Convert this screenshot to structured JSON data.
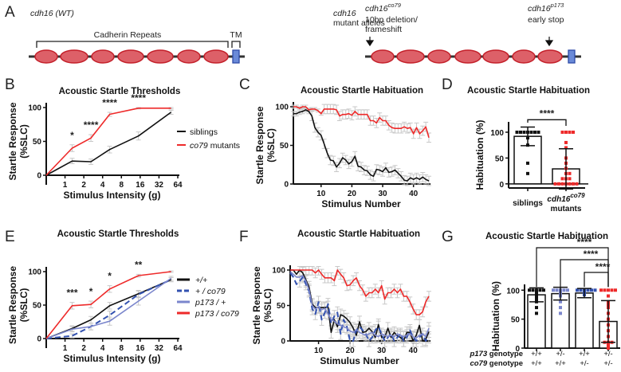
{
  "colors": {
    "black": "#111111",
    "red": "#ee2a2a",
    "blue_dark": "#3352b0",
    "blue_light": "#7b86cc",
    "errbar": "#c8c8c8",
    "domain_fill": "#dd6068",
    "domain_stroke": "#c4202a",
    "tm_fill": "#6a8ad8",
    "tm_stroke": "#2c4aa8"
  },
  "panelA": {
    "label": "A",
    "wt_title": "cdh16 (WT)",
    "repeats_label": "Cadherin Repeats",
    "tm_label": "TM",
    "mutant_title_line1": "cdh16",
    "mutant_title_line2": "mutant alleles",
    "allele1_name": "cdh16",
    "allele1_sup": "co79",
    "allele1_desc1": "10bp deletion/",
    "allele1_desc2": "frameshift",
    "allele2_name": "cdh16",
    "allele2_sup": "p173",
    "allele2_desc": "early stop",
    "num_repeats": 7
  },
  "chart_data": [
    {
      "panel": "B",
      "type": "line",
      "title": "Acoustic Startle Thresholds",
      "xlabel": "Stimulus Intensity (g)",
      "ylabel": "Startle Response (%SLC)",
      "xticks": [
        "1",
        "2",
        "4",
        "8",
        "16",
        "32",
        "64"
      ],
      "yticks": [
        "0",
        "50",
        "100"
      ],
      "ylim": [
        0,
        100
      ],
      "x": [
        0,
        1.3,
        2.6,
        5.2,
        15,
        50
      ],
      "series": [
        {
          "name": "siblings",
          "color": "#111111",
          "values": [
            0,
            21,
            20,
            38,
            58,
            93
          ],
          "err": [
            0,
            4,
            4,
            5,
            6,
            3
          ]
        },
        {
          "name": "co79 mutants",
          "color": "#ee2a2a",
          "values": [
            0,
            40,
            55,
            90,
            99,
            99
          ],
          "err": [
            0,
            5,
            5,
            3,
            1,
            1
          ]
        }
      ],
      "significance": [
        {
          "x": 1.3,
          "label": "*"
        },
        {
          "x": 2.6,
          "label": "****"
        },
        {
          "x": 5.2,
          "label": "****"
        },
        {
          "x": 15,
          "label": "****"
        }
      ],
      "legend": [
        {
          "label": "siblings",
          "italic_part": ""
        },
        {
          "label": " mutants",
          "italic_part": "co79"
        }
      ]
    },
    {
      "panel": "C",
      "type": "line",
      "title": "Acoustic Startle Habituation",
      "xlabel": "Stimulus Number",
      "ylabel": "Startle Response (%SLC)",
      "xticks": [
        "10",
        "20",
        "30",
        "40"
      ],
      "yticks": [
        "0",
        "50",
        "100"
      ],
      "ylim": [
        0,
        100
      ],
      "xlim": [
        1,
        45
      ],
      "series": [
        {
          "name": "siblings",
          "color": "#111111",
          "values": [
            91,
            91,
            93,
            94,
            96,
            94,
            88,
            73,
            67,
            63,
            52,
            40,
            31,
            30,
            22,
            27,
            34,
            31,
            26,
            29,
            36,
            23,
            22,
            18,
            17,
            12,
            10,
            19,
            18,
            16,
            21,
            15,
            16,
            18,
            14,
            10,
            5,
            4,
            8,
            6,
            8,
            6,
            9,
            6,
            4
          ]
        },
        {
          "name": "co79 mutants",
          "color": "#ee2a2a",
          "values": [
            100,
            100,
            98,
            100,
            100,
            96,
            97,
            97,
            95,
            91,
            97,
            97,
            97,
            97,
            96,
            88,
            90,
            90,
            91,
            89,
            94,
            90,
            90,
            90,
            90,
            82,
            82,
            79,
            86,
            82,
            82,
            76,
            73,
            72,
            72,
            72,
            74,
            72,
            73,
            65,
            73,
            65,
            69,
            74,
            60
          ]
        }
      ]
    },
    {
      "panel": "D",
      "type": "bar",
      "title": "Acoustic Startle Habituation",
      "ylabel": "Habituation (%)",
      "yticks": [
        "0",
        "50",
        "100"
      ],
      "ylim": [
        -8,
        120
      ],
      "categories": [
        "siblings",
        "cdh16 co79 mutants"
      ],
      "category_labels": [
        {
          "line1": "siblings",
          "line2": "",
          "sup": ""
        },
        {
          "line1": "cdh16",
          "line2": "mutants",
          "sup": "co79"
        }
      ],
      "values": [
        92,
        29
      ],
      "err": [
        18,
        39
      ],
      "colors": [
        "#111111",
        "#ee2a2a"
      ],
      "points": [
        [
          100,
          100,
          100,
          100,
          100,
          100,
          100,
          90,
          89,
          75,
          40,
          20
        ],
        [
          100,
          100,
          100,
          100,
          80,
          70,
          50,
          40,
          30,
          20,
          20,
          10,
          10,
          10,
          0,
          0,
          0,
          0,
          0,
          0,
          0
        ]
      ],
      "significance": [
        {
          "from": 0,
          "to": 1,
          "label": "****"
        }
      ]
    },
    {
      "panel": "E",
      "type": "line",
      "title": "Acoustic Startle Thresholds",
      "xlabel": "Stimulus Intensity (g)",
      "ylabel": "Startle Response (%SLC)",
      "xticks": [
        "1",
        "2",
        "4",
        "8",
        "16",
        "32",
        "64"
      ],
      "yticks": [
        "0",
        "50",
        "100"
      ],
      "ylim": [
        0,
        100
      ],
      "x": [
        0,
        1.3,
        2.6,
        5.2,
        15,
        50
      ],
      "series": [
        {
          "name": "+/+",
          "color": "#111111",
          "dash": false,
          "values": [
            0,
            15,
            28,
            49,
            67,
            88
          ],
          "err": [
            0,
            4,
            5,
            5,
            5,
            3
          ]
        },
        {
          "name": "+ / co79",
          "color": "#3352b0",
          "dash": true,
          "values": [
            0,
            4,
            18,
            35,
            66,
            88
          ],
          "err": [
            0,
            3,
            5,
            6,
            5,
            3
          ]
        },
        {
          "name": "p173 / +",
          "color": "#7b86cc",
          "dash": false,
          "values": [
            0,
            14,
            18,
            26,
            56,
            90
          ],
          "err": [
            0,
            4,
            5,
            6,
            6,
            3
          ]
        },
        {
          "name": "p173 / co79",
          "color": "#ee2a2a",
          "dash": false,
          "values": [
            0,
            49,
            51,
            74,
            94,
            100
          ],
          "err": [
            0,
            5,
            5,
            5,
            2,
            1
          ]
        }
      ],
      "significance": [
        {
          "x": 1.3,
          "label": "***"
        },
        {
          "x": 2.6,
          "label": "*"
        },
        {
          "x": 5.2,
          "label": "*"
        },
        {
          "x": 15,
          "label": "**"
        }
      ],
      "legend": [
        {
          "label": "+/+"
        },
        {
          "label": "+ / co79"
        },
        {
          "label": "p173 / +"
        },
        {
          "label": "p173 / co79"
        }
      ]
    },
    {
      "panel": "F",
      "type": "line",
      "title": "Acoustic Startle Habituation",
      "xlabel": "Stimulus Number",
      "ylabel": "Startle Response (%SLC)",
      "xticks": [
        "10",
        "20",
        "30",
        "40"
      ],
      "yticks": [
        "0",
        "50",
        "100"
      ],
      "ylim": [
        0,
        100
      ],
      "xlim": [
        1,
        45
      ],
      "series": [
        {
          "name": "+/+",
          "color": "#111111",
          "dash": false,
          "values": [
            100,
            100,
            94,
            100,
            96,
            86,
            76,
            52,
            47,
            47,
            47,
            47,
            48,
            12,
            30,
            20,
            37,
            35,
            31,
            26,
            18,
            8,
            27,
            12,
            13,
            18,
            13,
            5,
            23,
            5,
            5,
            18,
            5,
            12,
            7,
            5,
            0,
            12,
            12,
            0,
            8,
            22,
            0,
            2,
            13
          ]
        },
        {
          "name": "+ / co79",
          "color": "#3352b0",
          "dash": true,
          "values": [
            96,
            90,
            80,
            84,
            90,
            80,
            70,
            45,
            38,
            55,
            30,
            40,
            52,
            25,
            35,
            40,
            10,
            30,
            20,
            0,
            0,
            15,
            20,
            15,
            10,
            0,
            5,
            15,
            20,
            10,
            0,
            5,
            10,
            0,
            5,
            10,
            0,
            5,
            15,
            5,
            0,
            5,
            10,
            0,
            5
          ]
        },
        {
          "name": "p173 / +",
          "color": "#7b86cc",
          "dash": false,
          "values": [
            98,
            94,
            90,
            90,
            92,
            84,
            72,
            50,
            45,
            48,
            44,
            46,
            38,
            30,
            28,
            24,
            22,
            20,
            18,
            14,
            12,
            16,
            12,
            10,
            8,
            10,
            12,
            8,
            6,
            10,
            8,
            6,
            8,
            6,
            10,
            8,
            6,
            8,
            10,
            6,
            4,
            8,
            10,
            6,
            18
          ]
        },
        {
          "name": "p173 / co79",
          "color": "#ee2a2a",
          "dash": false,
          "values": [
            100,
            100,
            100,
            100,
            100,
            100,
            100,
            100,
            96,
            100,
            94,
            89,
            89,
            89,
            85,
            100,
            94,
            89,
            78,
            79,
            85,
            89,
            78,
            72,
            63,
            68,
            68,
            73,
            68,
            78,
            59,
            68,
            68,
            73,
            68,
            73,
            63,
            63,
            55,
            45,
            37,
            37,
            41,
            55,
            63
          ]
        }
      ]
    },
    {
      "panel": "G",
      "type": "bar",
      "title": "Acoustic Startle Habituation",
      "ylabel": "Habituation (%)",
      "yticks": [
        "0",
        "50",
        "100"
      ],
      "ylim": [
        0,
        110
      ],
      "categories": [
        "+/+ ; +/+",
        "+/- ; +/+",
        "+/+ ; +/-",
        "+/- ; +/-"
      ],
      "genotype_rows": [
        {
          "label_italic": "p173",
          "label_rest": " genotype",
          "values": [
            "+/+",
            "+/-",
            "+/+",
            "+/-"
          ]
        },
        {
          "label_italic": "co79",
          "label_rest": " genotype",
          "values": [
            "+/+",
            "+/+",
            "+/-",
            "+/-"
          ]
        }
      ],
      "values": [
        92,
        94,
        95,
        46
      ],
      "err": [
        12,
        11,
        8,
        36
      ],
      "colors": [
        "#111111",
        "#7b86cc",
        "#3352b0",
        "#ee2a2a"
      ],
      "points": [
        [
          100,
          100,
          100,
          100,
          100,
          95,
          90,
          85,
          80,
          70,
          60
        ],
        [
          100,
          100,
          100,
          100,
          100,
          95,
          90,
          80,
          70,
          60
        ],
        [
          100,
          100,
          100,
          100,
          100,
          100,
          98,
          95,
          92
        ],
        [
          100,
          100,
          100,
          100,
          100,
          90,
          80,
          75,
          70,
          60,
          50,
          40,
          30,
          20,
          10,
          10,
          10,
          5,
          0
        ]
      ],
      "significance": [
        {
          "from": 0,
          "to": 3,
          "label": "****"
        },
        {
          "from": 1,
          "to": 3,
          "label": "****"
        },
        {
          "from": 2,
          "to": 3,
          "label": "****"
        }
      ]
    }
  ]
}
